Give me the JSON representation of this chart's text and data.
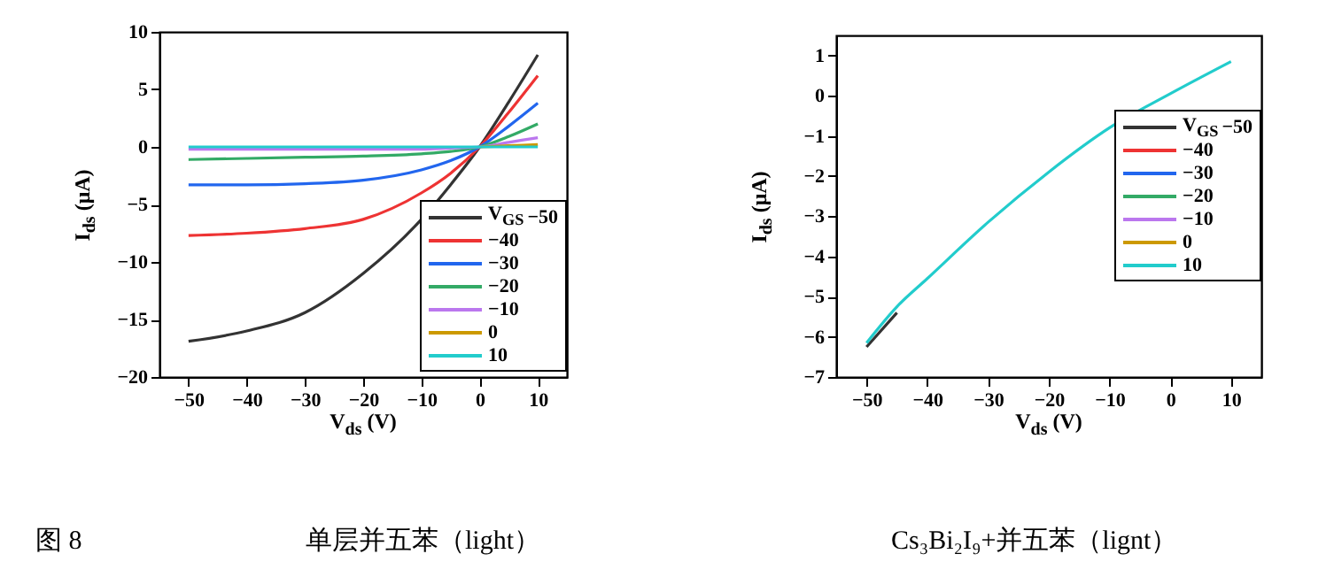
{
  "chart_data": [
    {
      "type": "line",
      "xlabel": "V$_{ds}$ (V)",
      "ylabel": "I$_{ds}$ (μA)",
      "legend_title": "V$_{GS}$",
      "legend": "bottom right",
      "line_style": "solid",
      "x": [
        -50,
        -40,
        -30,
        -20,
        -10,
        -5,
        0,
        5,
        10
      ],
      "xlim": [
        -55,
        15
      ],
      "xticks": [
        -50,
        -40,
        -30,
        -20,
        -10,
        0,
        10
      ],
      "ylim": [
        -20,
        10
      ],
      "yticks": [
        -20,
        -15,
        -10,
        -5,
        0,
        5,
        10
      ],
      "series": [
        {
          "name": "−50",
          "color": "#333333",
          "values": [
            -16.9,
            -16.0,
            -14.4,
            -11.0,
            -6.3,
            -3.3,
            0,
            3.9,
            8.0
          ]
        },
        {
          "name": "−40",
          "color": "#ee3333",
          "values": [
            -7.7,
            -7.5,
            -7.1,
            -6.3,
            -4.0,
            -2.3,
            0,
            3.0,
            6.2
          ]
        },
        {
          "name": "−30",
          "color": "#2266ee",
          "values": [
            -3.3,
            -3.3,
            -3.2,
            -2.9,
            -2.0,
            -1.2,
            0,
            1.8,
            3.8
          ]
        },
        {
          "name": "−20",
          "color": "#33aa66",
          "values": [
            -1.1,
            -1.0,
            -0.9,
            -0.8,
            -0.6,
            -0.4,
            0,
            0.9,
            2.0
          ]
        },
        {
          "name": "−10",
          "color": "#bb77ee",
          "values": [
            -0.2,
            -0.2,
            -0.2,
            -0.2,
            -0.2,
            -0.1,
            0,
            0.4,
            0.8
          ]
        },
        {
          "name": "0",
          "color": "#cc9900",
          "values": [
            null,
            null,
            null,
            null,
            null,
            null,
            0,
            0.1,
            0.2
          ]
        },
        {
          "name": "10",
          "color": "#22cccc",
          "values": [
            0,
            0,
            0,
            0,
            0,
            0,
            0,
            0,
            0
          ]
        }
      ],
      "annotations": [
        "图 8",
        "单层并五苯（light）"
      ]
    },
    {
      "type": "line",
      "xlabel": "V$_{ds}$ (V)",
      "ylabel": "I$_{ds}$ (μA)",
      "legend_title": "V$_{GS}$",
      "legend": "right",
      "line_style": "solid",
      "x": [
        -50,
        -45,
        -40,
        -30,
        -20,
        -10,
        0,
        10
      ],
      "xlim": [
        -55,
        15
      ],
      "xticks": [
        -50,
        -40,
        -30,
        -20,
        -10,
        0,
        10
      ],
      "ylim": [
        -7,
        1.5
      ],
      "yticks": [
        -7,
        -6,
        -5,
        -4,
        -3,
        -2,
        -1,
        0,
        1
      ],
      "series": [
        {
          "name": "−50",
          "color": "#333333",
          "values": [
            -6.25,
            -5.4,
            null,
            null,
            null,
            null,
            null,
            null
          ]
        },
        {
          "name": "−40",
          "color": "#ee3333",
          "values": [
            null,
            null,
            null,
            null,
            null,
            null,
            null,
            null
          ]
        },
        {
          "name": "−30",
          "color": "#2266ee",
          "values": [
            null,
            null,
            null,
            null,
            null,
            null,
            null,
            null
          ]
        },
        {
          "name": "−20",
          "color": "#33aa66",
          "values": [
            null,
            null,
            null,
            null,
            null,
            null,
            null,
            null
          ]
        },
        {
          "name": "−10",
          "color": "#bb77ee",
          "values": [
            null,
            null,
            null,
            null,
            null,
            null,
            null,
            null
          ]
        },
        {
          "name": "0",
          "color": "#cc9900",
          "values": [
            null,
            null,
            null,
            null,
            null,
            null,
            null,
            null
          ]
        },
        {
          "name": "10",
          "color": "#22cccc",
          "values": [
            -6.15,
            -5.25,
            -4.55,
            -3.15,
            -1.9,
            -0.8,
            0.05,
            0.85
          ]
        }
      ],
      "annotations": [
        "Cs₃Bi₂I₉+并五苯（lignt）"
      ]
    }
  ]
}
